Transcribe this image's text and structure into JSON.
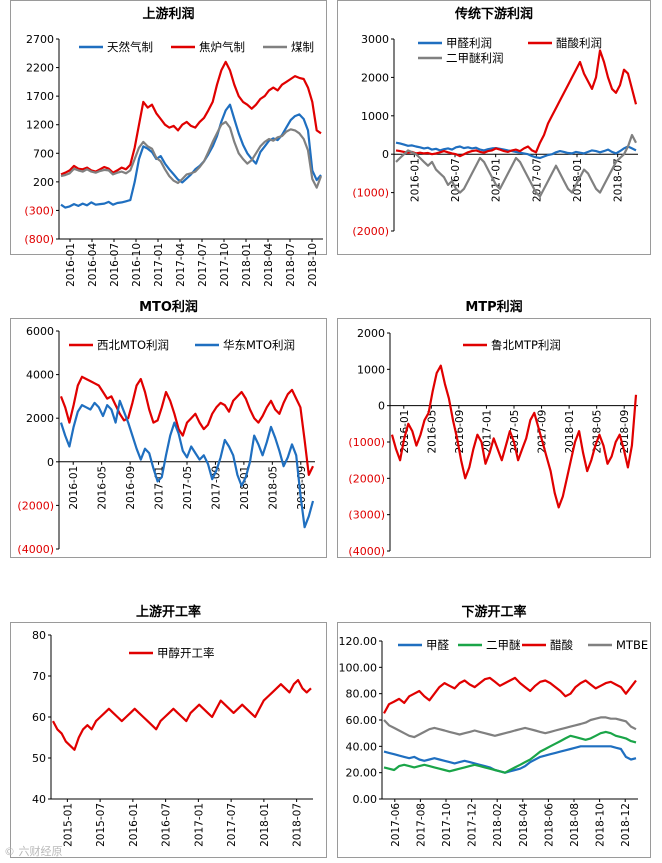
{
  "watermark": "© 六财经原",
  "chart_data": [
    {
      "id": "upstream_profit",
      "type": "line",
      "title": "上游利润",
      "y_ticks": [
        2700,
        2200,
        1700,
        1200,
        700,
        200,
        -300,
        -800
      ],
      "y_tick_labels": [
        "2700",
        "2200",
        "1700",
        "1200",
        "700",
        "200",
        "(300)",
        "(800)"
      ],
      "negative_tick_color": "#e00000",
      "ylim": [
        -800,
        2700
      ],
      "zero_line": 0,
      "x_tick_labels": [
        "2016-01",
        "2016-04",
        "2016-07",
        "2016-10",
        "2017-01",
        "2017-04",
        "2017-07",
        "2017-10",
        "2018-01",
        "2018-04",
        "2018-07",
        "2018-10"
      ],
      "legend_cols": 3,
      "series": [
        {
          "name": "天然气制",
          "color": "#1f6fc0",
          "values": [
            -200,
            -250,
            -230,
            -190,
            -220,
            -180,
            -210,
            -160,
            -200,
            -190,
            -180,
            -150,
            -200,
            -170,
            -160,
            -140,
            -120,
            200,
            600,
            820,
            780,
            720,
            600,
            650,
            520,
            420,
            330,
            240,
            190,
            260,
            330,
            420,
            480,
            560,
            680,
            820,
            1000,
            1250,
            1450,
            1550,
            1300,
            1050,
            850,
            700,
            600,
            520,
            720,
            820,
            920,
            960,
            930,
            1020,
            1150,
            1280,
            1350,
            1380,
            1300,
            1100,
            400,
            230,
            320
          ]
        },
        {
          "name": "焦炉气制",
          "color": "#e00000",
          "values": [
            330,
            360,
            400,
            480,
            430,
            420,
            450,
            400,
            380,
            420,
            460,
            430,
            360,
            400,
            450,
            420,
            500,
            800,
            1200,
            1600,
            1500,
            1550,
            1400,
            1300,
            1200,
            1150,
            1180,
            1100,
            1200,
            1250,
            1180,
            1150,
            1250,
            1320,
            1450,
            1600,
            1900,
            2150,
            2300,
            2150,
            1900,
            1700,
            1600,
            1550,
            1480,
            1550,
            1650,
            1700,
            1800,
            1850,
            1800,
            1900,
            1950,
            2000,
            2050,
            2020,
            2000,
            1850,
            1600,
            1100,
            1050
          ]
        },
        {
          "name": "煤制",
          "color": "#808080",
          "values": [
            300,
            320,
            350,
            430,
            400,
            380,
            420,
            380,
            360,
            390,
            410,
            400,
            330,
            360,
            380,
            350,
            400,
            600,
            800,
            900,
            820,
            780,
            620,
            560,
            420,
            300,
            220,
            180,
            250,
            330,
            350,
            380,
            460,
            560,
            720,
            900,
            1050,
            1200,
            1250,
            1150,
            900,
            700,
            600,
            520,
            580,
            700,
            820,
            900,
            950,
            920,
            980,
            1000,
            1080,
            1120,
            1100,
            1050,
            950,
            750,
            250,
            100,
            300
          ]
        }
      ]
    },
    {
      "id": "downstream_profit",
      "type": "line",
      "title": "传统下游利润",
      "y_ticks": [
        3000,
        2000,
        1000,
        0,
        -1000,
        -2000
      ],
      "y_tick_labels": [
        "3000",
        "2000",
        "1000",
        "0",
        "(1000)",
        "(2000)"
      ],
      "negative_tick_color": "#e00000",
      "ylim": [
        -2000,
        3000
      ],
      "zero_line": 0,
      "x_tick_labels": [
        "2016-01",
        "2016-07",
        "2017-01",
        "2017-07",
        "2018-01",
        "2018-07"
      ],
      "legend_cols": 2,
      "series": [
        {
          "name": "甲醛利润",
          "color": "#1f6fc0",
          "values": [
            300,
            280,
            250,
            220,
            230,
            200,
            180,
            150,
            170,
            120,
            140,
            100,
            130,
            150,
            120,
            180,
            200,
            160,
            180,
            150,
            170,
            120,
            100,
            130,
            150,
            160,
            140,
            120,
            100,
            80,
            60,
            40,
            20,
            0,
            -50,
            -80,
            -100,
            -60,
            -20,
            0,
            50,
            80,
            60,
            30,
            20,
            60,
            40,
            20,
            60,
            100,
            80,
            50,
            80,
            120,
            60,
            20,
            80,
            150,
            200,
            150,
            100
          ]
        },
        {
          "name": "醋酸利润",
          "color": "#e00000",
          "values": [
            100,
            80,
            60,
            40,
            60,
            20,
            40,
            20,
            30,
            0,
            20,
            50,
            80,
            50,
            20,
            0,
            -50,
            0,
            50,
            80,
            100,
            60,
            40,
            80,
            100,
            150,
            120,
            80,
            60,
            100,
            120,
            80,
            150,
            200,
            100,
            50,
            300,
            500,
            800,
            1000,
            1200,
            1400,
            1600,
            1800,
            2000,
            2200,
            2400,
            2100,
            1900,
            1700,
            2000,
            2700,
            2400,
            2000,
            1700,
            1600,
            1800,
            2200,
            2100,
            1700,
            1300
          ]
        },
        {
          "name": "二甲醚利润",
          "color": "#808080",
          "values": [
            -200,
            -100,
            0,
            100,
            50,
            0,
            -100,
            -200,
            -300,
            -200,
            -400,
            -500,
            -600,
            -800,
            -700,
            -900,
            -1000,
            -900,
            -700,
            -500,
            -300,
            -100,
            -200,
            -400,
            -600,
            -800,
            -900,
            -700,
            -500,
            -300,
            -100,
            -200,
            -400,
            -600,
            -800,
            -1000,
            -1100,
            -900,
            -700,
            -500,
            -300,
            -500,
            -700,
            -900,
            -1000,
            -800,
            -600,
            -400,
            -500,
            -700,
            -900,
            -1000,
            -800,
            -600,
            -400,
            -200,
            -100,
            0,
            200,
            500,
            300
          ]
        }
      ]
    },
    {
      "id": "mto_profit",
      "type": "line",
      "title": "MTO利润",
      "y_ticks": [
        6000,
        4000,
        2000,
        0,
        -2000,
        -4000
      ],
      "y_tick_labels": [
        "6000",
        "4000",
        "2000",
        "0",
        "(2000)",
        "(4000)"
      ],
      "negative_tick_color": "#e00000",
      "ylim": [
        -4000,
        6000
      ],
      "zero_line": 0,
      "x_tick_labels": [
        "2016-01",
        "2016-05",
        "2016-09",
        "2017-01",
        "2017-05",
        "2017-09",
        "2018-01",
        "2018-05",
        "2018-09"
      ],
      "legend_cols": 2,
      "series": [
        {
          "name": "西北MTO利润",
          "color": "#e00000",
          "values": [
            3000,
            2500,
            1800,
            2600,
            3500,
            3900,
            3800,
            3700,
            3600,
            3500,
            3200,
            2900,
            3000,
            2600,
            2200,
            1900,
            2000,
            2700,
            3500,
            3800,
            3200,
            2400,
            1800,
            1900,
            2500,
            3200,
            2800,
            2200,
            1500,
            1200,
            1800,
            2000,
            2200,
            1800,
            1500,
            1700,
            2200,
            2500,
            2700,
            2600,
            2300,
            2800,
            3000,
            3200,
            2900,
            2400,
            2000,
            1800,
            2100,
            2500,
            2800,
            2400,
            2200,
            2700,
            3100,
            3300,
            2900,
            2500,
            1000,
            -600,
            -200
          ]
        },
        {
          "name": "华东MTO利润",
          "color": "#1f6fc0",
          "values": [
            1800,
            1200,
            700,
            1600,
            2300,
            2600,
            2500,
            2400,
            2700,
            2500,
            2100,
            2600,
            2400,
            1800,
            2800,
            2300,
            1800,
            1200,
            600,
            100,
            600,
            400,
            -300,
            -900,
            -700,
            300,
            1200,
            1800,
            1300,
            500,
            200,
            700,
            400,
            100,
            300,
            -100,
            -800,
            -400,
            200,
            1000,
            700,
            300,
            -600,
            -1100,
            -700,
            0,
            1200,
            800,
            300,
            900,
            1600,
            1100,
            500,
            -200,
            200,
            800,
            300,
            -1500,
            -3000,
            -2500,
            -1800
          ]
        }
      ]
    },
    {
      "id": "mtp_profit",
      "type": "line",
      "title": "MTP利润",
      "y_ticks": [
        2000,
        1000,
        0,
        -1000,
        -2000,
        -3000,
        -4000
      ],
      "y_tick_labels": [
        "2000",
        "1000",
        "0",
        "(1000)",
        "(2000)",
        "(3000)",
        "(4000)"
      ],
      "negative_tick_color": "#e00000",
      "ylim": [
        -4000,
        2000
      ],
      "zero_line": 0,
      "x_tick_labels": [
        "2016-01",
        "2016-05",
        "2016-09",
        "2017-01",
        "2017-05",
        "2017-09",
        "2018-01",
        "2018-05",
        "2018-09"
      ],
      "legend_cols": 1,
      "series": [
        {
          "name": "鲁北MTP利润",
          "color": "#e00000",
          "values": [
            -800,
            -1200,
            -1500,
            -900,
            -500,
            -700,
            -1100,
            -800,
            -400,
            -200,
            400,
            900,
            1100,
            600,
            200,
            -400,
            -900,
            -1500,
            -2000,
            -1700,
            -1200,
            -800,
            -1000,
            -1600,
            -1300,
            -900,
            -1200,
            -1500,
            -1100,
            -700,
            -1000,
            -1500,
            -1200,
            -900,
            -400,
            -200,
            -600,
            -1000,
            -1400,
            -1800,
            -2400,
            -2800,
            -2500,
            -2000,
            -1500,
            -1000,
            -700,
            -1300,
            -1800,
            -1500,
            -1100,
            -800,
            -1100,
            -1600,
            -1400,
            -1000,
            -800,
            -1200,
            -1700,
            -1100,
            300
          ]
        }
      ]
    },
    {
      "id": "upstream_operating_rate",
      "type": "line",
      "title": "上游开工率",
      "y_ticks": [
        80,
        70,
        60,
        50,
        40
      ],
      "y_tick_labels": [
        "80",
        "70",
        "60",
        "50",
        "40"
      ],
      "ylim": [
        40,
        80
      ],
      "x_tick_labels": [
        "2015-01",
        "2015-07",
        "2016-01",
        "2016-07",
        "2017-01",
        "2017-07",
        "2018-01",
        "2018-07"
      ],
      "legend_cols": 1,
      "series": [
        {
          "name": "甲醇开工率",
          "color": "#e00000",
          "values": [
            59,
            57,
            56,
            54,
            53,
            52,
            55,
            57,
            58,
            57,
            59,
            60,
            61,
            62,
            61,
            60,
            59,
            60,
            61,
            62,
            61,
            60,
            59,
            58,
            57,
            59,
            60,
            61,
            62,
            61,
            60,
            59,
            61,
            62,
            63,
            62,
            61,
            60,
            62,
            64,
            63,
            62,
            61,
            62,
            63,
            62,
            61,
            60,
            62,
            64,
            65,
            66,
            67,
            68,
            67,
            66,
            68,
            69,
            67,
            66,
            67
          ]
        }
      ]
    },
    {
      "id": "downstream_operating_rate",
      "type": "line",
      "title": "下游开工率",
      "y_ticks": [
        120,
        100,
        80,
        60,
        40,
        20,
        0
      ],
      "y_tick_labels": [
        "120.00",
        "100.00",
        "80.00",
        "60.00",
        "40.00",
        "20.00",
        "0.00"
      ],
      "ylim": [
        0,
        120
      ],
      "x_tick_labels": [
        "2017-06",
        "2017-08",
        "2017-10",
        "2017-12",
        "2018-02",
        "2018-04",
        "2018-06",
        "2018-08",
        "2018-10",
        "2018-12"
      ],
      "legend_cols": 4,
      "series": [
        {
          "name": "甲醛",
          "color": "#1f6fc0",
          "values": [
            36,
            35,
            34,
            33,
            32,
            31,
            32,
            30,
            29,
            30,
            31,
            30,
            29,
            28,
            27,
            28,
            29,
            28,
            27,
            26,
            25,
            24,
            22,
            21,
            20,
            21,
            22,
            23,
            25,
            28,
            30,
            32,
            33,
            34,
            35,
            36,
            37,
            38,
            39,
            40,
            40,
            40,
            40,
            40,
            40,
            40,
            39,
            38,
            32,
            30,
            31
          ]
        },
        {
          "name": "二甲醚",
          "color": "#1aa548",
          "values": [
            24,
            23,
            22,
            25,
            26,
            25,
            24,
            25,
            26,
            25,
            24,
            23,
            22,
            21,
            22,
            23,
            24,
            25,
            26,
            25,
            24,
            23,
            22,
            21,
            20,
            22,
            24,
            26,
            28,
            30,
            33,
            36,
            38,
            40,
            42,
            44,
            46,
            48,
            47,
            46,
            45,
            46,
            48,
            50,
            51,
            50,
            48,
            47,
            46,
            44,
            43
          ]
        },
        {
          "name": "醋酸",
          "color": "#e00000",
          "values": [
            65,
            72,
            74,
            76,
            73,
            78,
            80,
            82,
            78,
            75,
            80,
            85,
            88,
            86,
            84,
            88,
            90,
            87,
            85,
            88,
            91,
            92,
            89,
            86,
            88,
            90,
            92,
            88,
            85,
            82,
            86,
            89,
            90,
            88,
            85,
            82,
            78,
            80,
            85,
            88,
            90,
            87,
            84,
            86,
            88,
            89,
            87,
            85,
            80,
            85,
            90
          ]
        },
        {
          "name": "MTBE",
          "color": "#808080",
          "values": [
            60,
            56,
            54,
            52,
            50,
            48,
            47,
            49,
            51,
            53,
            54,
            53,
            52,
            51,
            50,
            49,
            50,
            51,
            52,
            51,
            50,
            49,
            48,
            49,
            50,
            51,
            52,
            53,
            54,
            53,
            52,
            51,
            50,
            51,
            52,
            53,
            54,
            55,
            56,
            57,
            58,
            60,
            61,
            62,
            62,
            61,
            61,
            60,
            59,
            55,
            53
          ]
        }
      ]
    }
  ]
}
